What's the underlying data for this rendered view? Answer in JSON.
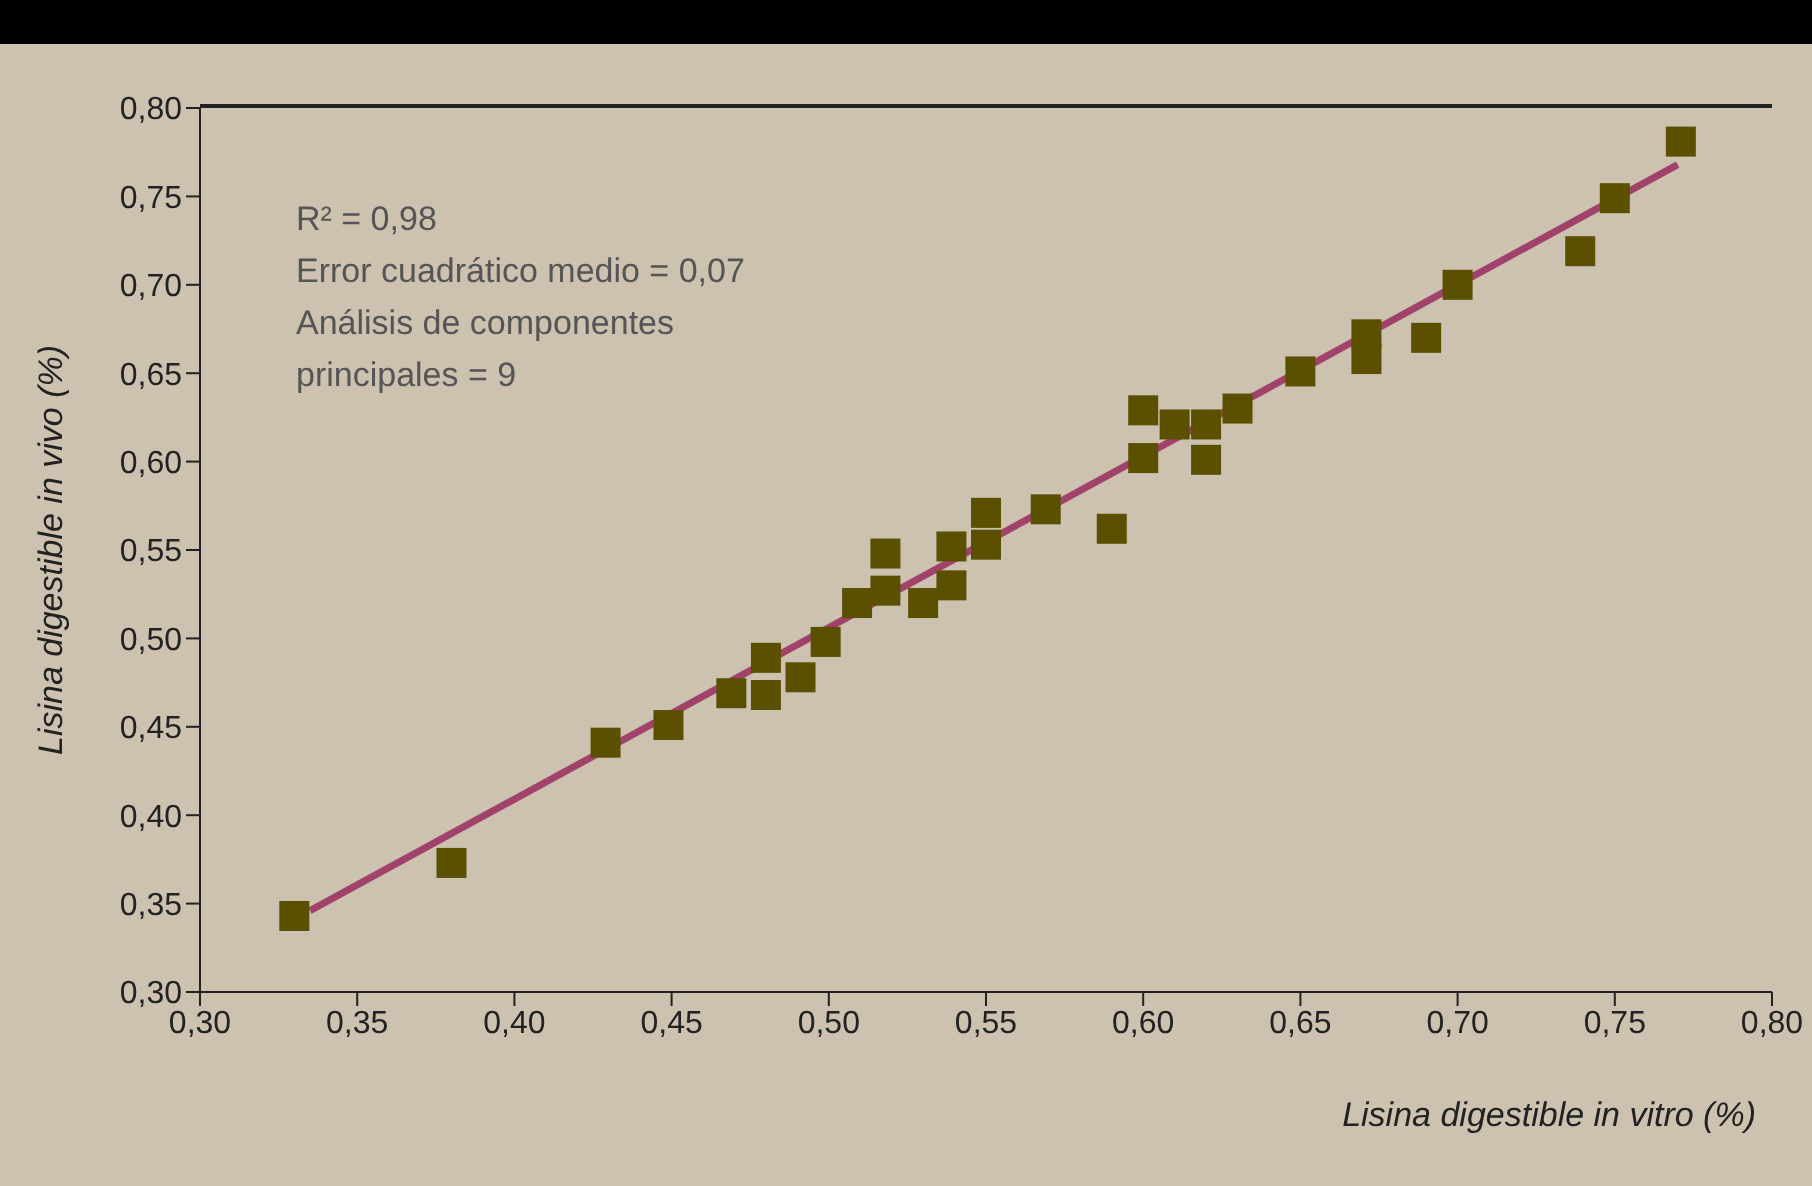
{
  "chart_data": {
    "type": "scatter",
    "xlabel": "Lisina digestible in vitro (%)",
    "ylabel": "Lisina digestible in vivo (%)",
    "annotations": [
      "R² = 0,98",
      "Error cuadrático medio = 0,07",
      "Análisis de componentes principales = 9"
    ],
    "xlim": [
      0.3,
      0.8
    ],
    "ylim": [
      0.3,
      0.8
    ],
    "xticks": [
      {
        "value": 0.3,
        "label": "0,30"
      },
      {
        "value": 0.35,
        "label": "0,35"
      },
      {
        "value": 0.4,
        "label": "0,40"
      },
      {
        "value": 0.45,
        "label": "0,45"
      },
      {
        "value": 0.5,
        "label": "0,50"
      },
      {
        "value": 0.55,
        "label": "0,55"
      },
      {
        "value": 0.6,
        "label": "0,60"
      },
      {
        "value": 0.65,
        "label": "0,65"
      },
      {
        "value": 0.7,
        "label": "0,70"
      },
      {
        "value": 0.75,
        "label": "0,75"
      },
      {
        "value": 0.8,
        "label": "0,80"
      }
    ],
    "yticks": [
      {
        "value": 0.3,
        "label": "0,30"
      },
      {
        "value": 0.35,
        "label": "0,35"
      },
      {
        "value": 0.4,
        "label": "0,40"
      },
      {
        "value": 0.45,
        "label": "0,45"
      },
      {
        "value": 0.5,
        "label": "0,50"
      },
      {
        "value": 0.55,
        "label": "0,55"
      },
      {
        "value": 0.6,
        "label": "0,60"
      },
      {
        "value": 0.65,
        "label": "0,65"
      },
      {
        "value": 0.7,
        "label": "0,70"
      },
      {
        "value": 0.75,
        "label": "0,75"
      },
      {
        "value": 0.8,
        "label": "0,80"
      }
    ],
    "grid": false,
    "legend": false,
    "series": [
      {
        "marker": "square",
        "color": "#5a5000",
        "x": [
          0.33,
          0.38,
          0.429,
          0.449,
          0.469,
          0.48,
          0.48,
          0.491,
          0.499,
          0.509,
          0.518,
          0.518,
          0.53,
          0.539,
          0.539,
          0.55,
          0.55,
          0.569,
          0.59,
          0.6,
          0.6,
          0.61,
          0.62,
          0.62,
          0.63,
          0.65,
          0.671,
          0.671,
          0.69,
          0.7,
          0.739,
          0.75,
          0.771
        ],
        "values": [
          0.343,
          0.373,
          0.441,
          0.451,
          0.469,
          0.468,
          0.489,
          0.478,
          0.498,
          0.52,
          0.527,
          0.548,
          0.52,
          0.53,
          0.552,
          0.553,
          0.571,
          0.573,
          0.562,
          0.602,
          0.629,
          0.621,
          0.621,
          0.601,
          0.63,
          0.651,
          0.672,
          0.658,
          0.67,
          0.7,
          0.719,
          0.749,
          0.781
        ]
      },
      {
        "type": "line",
        "marker": "none",
        "color": "#a0426a",
        "x": [
          0.335,
          0.77
        ],
        "values": [
          0.346,
          0.768
        ]
      }
    ]
  }
}
